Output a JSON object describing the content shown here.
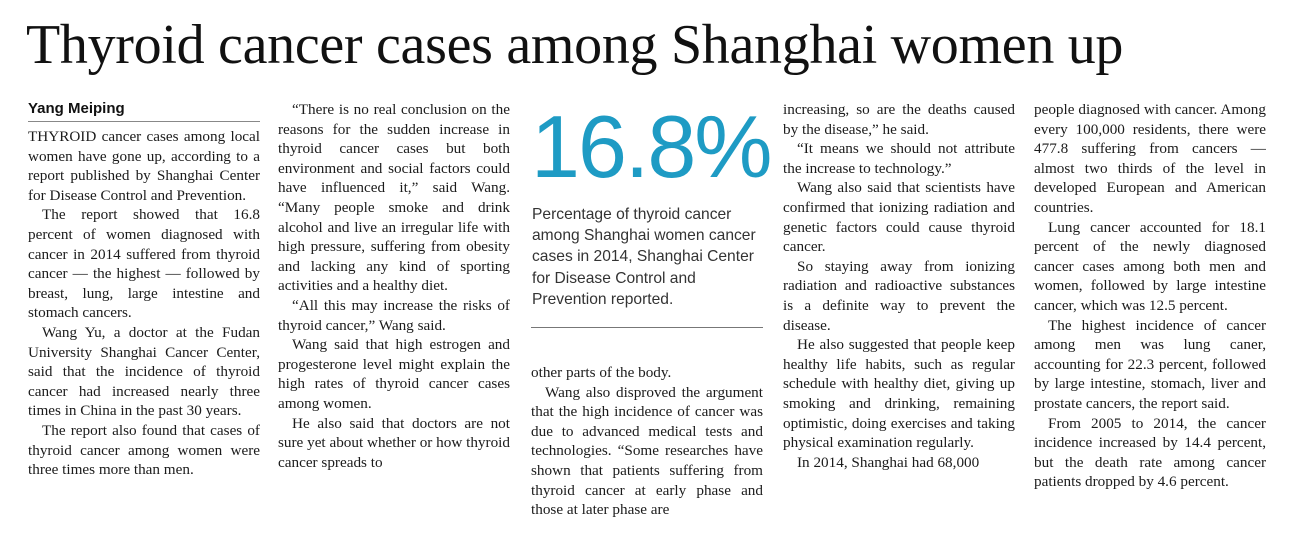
{
  "headline": "Thyroid cancer cases among Shanghai women up",
  "byline": "Yang Meiping",
  "pullquote": {
    "number": "16.8%",
    "caption": "Percentage of thyroid cancer among Shanghai women cancer cases in 2014, Shanghai Center for Disease Control and Prevention reported."
  },
  "columns": {
    "col1": [
      "THYROID cancer cases among local women have gone up, according to a report published by Shanghai Center for Disease Control and Prevention.",
      "The report showed that 16.8 percent of women diagnosed with cancer in 2014 suffered from thyroid cancer — the highest — followed by breast, lung, large intestine and stomach cancers.",
      "Wang Yu, a doctor at the Fudan University Shanghai Cancer Center, said that the incidence of thyroid cancer had increased nearly three times in China in the past 30 years.",
      "The report also found that cases of thyroid cancer among women were three times more than men."
    ],
    "col2": [
      "“There is no real conclusion on the reasons for the sudden increase in thyroid cancer cases but both environment and social factors could have influenced it,” said Wang. “Many people smoke and drink alcohol and live an irregular life with high pressure, suffering from obesity and lacking any kind of sporting activities and a healthy diet.",
      "“All this may increase the risks of thyroid cancer,” Wang said.",
      "Wang said that high estrogen and progesterone level might explain the high rates of thyroid cancer cases among women.",
      "He also said that doctors are not sure yet about whether or how thyroid cancer spreads to"
    ],
    "col3": [
      "other parts of the body.",
      "Wang also disproved the argument that the high incidence of cancer was due to advanced medical tests and technologies. “Some researches have shown that patients suffering from thyroid cancer at early phase and those at later phase are"
    ],
    "col4": [
      "increasing, so are the deaths caused by the disease,” he said.",
      "“It means we should not attribute the increase to technology.”",
      "Wang also said that scientists have confirmed that ionizing radiation and genetic factors could cause thyroid cancer.",
      "So staying away from ionizing radiation and radioactive substances is a definite way to prevent the disease.",
      "He also suggested that people keep healthy life habits, such as regular schedule with healthy diet, giving up smoking and drinking, remaining optimistic, doing exercises and taking physical examination regularly.",
      "In 2014, Shanghai had 68,000"
    ],
    "col5": [
      "people diagnosed with cancer. Among every 100,000 residents, there were 477.8 suffering from cancers — almost two thirds of the level in developed European and American countries.",
      "Lung cancer accounted for 18.1 percent of the newly diagnosed cancer cases among both men and women, followed by large intestine cancer, which was 12.5 percent.",
      "The highest incidence of cancer among men was lung caner, accounting for 22.3 percent, followed by large intestine, stomach, liver and prostate cancers, the report said.",
      "From 2005 to 2014, the cancer incidence increased by 14.4 percent, but the death rate among cancer patients dropped by 4.6 percent."
    ]
  },
  "colors": {
    "accent": "#1e9bc4",
    "text": "#1b1b1b"
  }
}
